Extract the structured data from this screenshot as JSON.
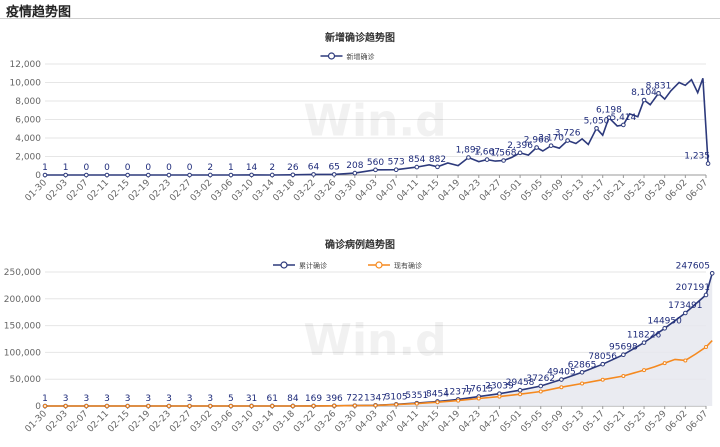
{
  "page_title": "疫情趋势图",
  "watermark": "Win.d",
  "colors": {
    "navy": "#2d3a7c",
    "orange": "#f5891f",
    "grid": "#e6e6e6",
    "area": "#e6e7ef"
  },
  "chart_data": [
    {
      "type": "line",
      "title": "新增确诊趋势图",
      "legend_placement": "top-center",
      "ylim": [
        0,
        12000
      ],
      "yticks": [
        "0",
        "2,000",
        "4,000",
        "6,000",
        "8,000",
        "10,000",
        "12,000"
      ],
      "categories": [
        "01-30",
        "02-03",
        "02-07",
        "02-11",
        "02-15",
        "02-19",
        "02-23",
        "02-27",
        "03-02",
        "03-06",
        "03-10",
        "03-14",
        "03-18",
        "03-22",
        "03-26",
        "03-30",
        "04-03",
        "04-07",
        "04-11",
        "04-15",
        "04-19",
        "04-23",
        "04-27",
        "05-01",
        "05-05",
        "05-09",
        "05-13",
        "05-17",
        "05-21",
        "05-25",
        "05-29",
        "06-02",
        "06-07"
      ],
      "series": [
        {
          "name": "新增确诊",
          "x": [
            0,
            1,
            2,
            3,
            4,
            5,
            6,
            7,
            8,
            9,
            10,
            11,
            12,
            13,
            14,
            15,
            16,
            17,
            18,
            18.6,
            19,
            19.5,
            20,
            20.5,
            21,
            21.4,
            21.8,
            22.2,
            22.6,
            23,
            23.4,
            23.8,
            24.1,
            24.5,
            24.9,
            25.3,
            25.7,
            26,
            26.3,
            26.7,
            27,
            27.3,
            27.7,
            28,
            28.3,
            28.7,
            29,
            29.3,
            29.7,
            30,
            30.3,
            30.7,
            31,
            31.3,
            31.6,
            31.85,
            32.1
          ],
          "y": [
            1,
            1,
            0,
            0,
            0,
            0,
            0,
            0,
            2,
            1,
            14,
            2,
            26,
            64,
            65,
            208,
            560,
            573,
            854,
            1100,
            882,
            1300,
            1020,
            1892,
            1450,
            1667,
            1500,
            1568,
            1900,
            2396,
            2150,
            2968,
            2600,
            3170,
            2900,
            3726,
            3400,
            3900,
            3300,
            5050,
            4300,
            6198,
            5300,
            5414,
            6600,
            6300,
            8104,
            7600,
            8831,
            8200,
            9100,
            10000,
            9700,
            10300,
            8900,
            10450,
            1235
          ]
        }
      ],
      "labels": [
        {
          "x": 0,
          "y": 1,
          "text": "1"
        },
        {
          "x": 1,
          "y": 1,
          "text": "1"
        },
        {
          "x": 2,
          "y": 0,
          "text": "0"
        },
        {
          "x": 3,
          "y": 0,
          "text": "0"
        },
        {
          "x": 4,
          "y": 0,
          "text": "0"
        },
        {
          "x": 5,
          "y": 0,
          "text": "0"
        },
        {
          "x": 6,
          "y": 0,
          "text": "0"
        },
        {
          "x": 7,
          "y": 0,
          "text": "0"
        },
        {
          "x": 8,
          "y": 2,
          "text": "2"
        },
        {
          "x": 9,
          "y": 1,
          "text": "1"
        },
        {
          "x": 10,
          "y": 14,
          "text": "14"
        },
        {
          "x": 11,
          "y": 2,
          "text": "2"
        },
        {
          "x": 12,
          "y": 26,
          "text": "26"
        },
        {
          "x": 13,
          "y": 64,
          "text": "64"
        },
        {
          "x": 14,
          "y": 65,
          "text": "65"
        },
        {
          "x": 15,
          "y": 208,
          "text": "208"
        },
        {
          "x": 16,
          "y": 560,
          "text": "560"
        },
        {
          "x": 17,
          "y": 573,
          "text": "573"
        },
        {
          "x": 18,
          "y": 854,
          "text": "854"
        },
        {
          "x": 19,
          "y": 882,
          "text": "882"
        },
        {
          "x": 20.5,
          "y": 1892,
          "text": "1,892"
        },
        {
          "x": 21.4,
          "y": 1667,
          "text": "1,667"
        },
        {
          "x": 22.2,
          "y": 1568,
          "text": "1,568"
        },
        {
          "x": 23,
          "y": 2396,
          "text": "2,396"
        },
        {
          "x": 23.8,
          "y": 2968,
          "text": "2,968"
        },
        {
          "x": 24.5,
          "y": 3170,
          "text": "3,170"
        },
        {
          "x": 25.3,
          "y": 3726,
          "text": "3,726"
        },
        {
          "x": 26.7,
          "y": 5050,
          "text": "5,050"
        },
        {
          "x": 27.3,
          "y": 6198,
          "text": "6,198"
        },
        {
          "x": 28,
          "y": 5414,
          "text": "5,414"
        },
        {
          "x": 29,
          "y": 8104,
          "text": "8,104"
        },
        {
          "x": 29.7,
          "y": 8831,
          "text": "8,831"
        },
        {
          "x": 32.1,
          "y": 1235,
          "text": "1,235"
        }
      ]
    },
    {
      "type": "area",
      "title": "确诊病例趋势图",
      "legend_placement": "top-center",
      "ylim": [
        0,
        250000
      ],
      "yticks": [
        "0",
        "50,000",
        "100,000",
        "150,000",
        "200,000",
        "250,000"
      ],
      "categories": [
        "01-30",
        "02-03",
        "02-07",
        "02-11",
        "02-15",
        "02-19",
        "02-23",
        "02-27",
        "03-02",
        "03-06",
        "03-10",
        "03-14",
        "03-18",
        "03-22",
        "03-26",
        "03-30",
        "04-03",
        "04-07",
        "04-11",
        "04-15",
        "04-19",
        "04-23",
        "04-27",
        "05-01",
        "05-05",
        "05-09",
        "05-13",
        "05-17",
        "05-21",
        "05-25",
        "05-29",
        "06-02",
        "06-07"
      ],
      "series": [
        {
          "name": "累计确诊",
          "x": [
            0,
            1,
            2,
            3,
            4,
            5,
            6,
            7,
            8,
            9,
            10,
            11,
            12,
            13,
            14,
            15,
            16,
            17,
            18,
            19,
            20,
            21,
            22,
            23,
            24,
            25,
            26,
            27,
            28,
            29,
            30,
            31,
            32,
            32.3
          ],
          "y": [
            1,
            3,
            3,
            3,
            3,
            3,
            3,
            3,
            3,
            5,
            31,
            61,
            84,
            169,
            396,
            722,
            1347,
            3105,
            5351,
            8454,
            12377,
            17615,
            23039,
            29458,
            37262,
            49405,
            62865,
            78056,
            95698,
            118226,
            144950,
            173491,
            207191,
            247605
          ]
        },
        {
          "name": "现有确诊",
          "x": [
            0,
            1,
            2,
            3,
            4,
            5,
            6,
            7,
            8,
            9,
            10,
            11,
            12,
            13,
            14,
            15,
            16,
            17,
            18,
            19,
            20,
            21,
            22,
            23,
            24,
            25,
            26,
            27,
            28,
            29,
            29.5,
            30,
            30.5,
            31,
            31.5,
            32,
            32.3
          ],
          "y": [
            1,
            3,
            3,
            3,
            3,
            3,
            3,
            3,
            3,
            5,
            30,
            58,
            80,
            160,
            370,
            660,
            1200,
            2700,
            4500,
            7000,
            10000,
            14000,
            17500,
            22000,
            27000,
            35000,
            42000,
            49000,
            56000,
            67000,
            73000,
            80000,
            87000,
            85000,
            97000,
            110000,
            122000
          ]
        }
      ],
      "labels": [
        {
          "x": 0,
          "y": 1,
          "text": "1"
        },
        {
          "x": 1,
          "y": 3,
          "text": "3"
        },
        {
          "x": 2,
          "y": 3,
          "text": "3"
        },
        {
          "x": 3,
          "y": 3,
          "text": "3"
        },
        {
          "x": 4,
          "y": 3,
          "text": "3"
        },
        {
          "x": 5,
          "y": 3,
          "text": "3"
        },
        {
          "x": 6,
          "y": 3,
          "text": "3"
        },
        {
          "x": 7,
          "y": 3,
          "text": "3"
        },
        {
          "x": 8,
          "y": 3,
          "text": "3"
        },
        {
          "x": 9,
          "y": 5,
          "text": "5"
        },
        {
          "x": 10,
          "y": 31,
          "text": "31"
        },
        {
          "x": 11,
          "y": 61,
          "text": "61"
        },
        {
          "x": 12,
          "y": 84,
          "text": "84"
        },
        {
          "x": 13,
          "y": 169,
          "text": "169"
        },
        {
          "x": 14,
          "y": 396,
          "text": "396"
        },
        {
          "x": 15,
          "y": 722,
          "text": "722"
        },
        {
          "x": 16,
          "y": 1347,
          "text": "1347"
        },
        {
          "x": 17,
          "y": 3105,
          "text": "3105"
        },
        {
          "x": 18,
          "y": 5351,
          "text": "5351"
        },
        {
          "x": 19,
          "y": 8454,
          "text": "8454"
        },
        {
          "x": 20,
          "y": 12377,
          "text": "12377"
        },
        {
          "x": 21,
          "y": 17615,
          "text": "17615"
        },
        {
          "x": 22,
          "y": 23039,
          "text": "23039"
        },
        {
          "x": 23,
          "y": 29458,
          "text": "29458"
        },
        {
          "x": 24,
          "y": 37262,
          "text": "37262"
        },
        {
          "x": 25,
          "y": 49405,
          "text": "49405"
        },
        {
          "x": 26,
          "y": 62865,
          "text": "62865"
        },
        {
          "x": 27,
          "y": 78056,
          "text": "78056"
        },
        {
          "x": 28,
          "y": 95698,
          "text": "95698"
        },
        {
          "x": 29,
          "y": 118226,
          "text": "118226"
        },
        {
          "x": 30,
          "y": 144950,
          "text": "144950"
        },
        {
          "x": 31,
          "y": 173491,
          "text": "173491"
        },
        {
          "x": 32,
          "y": 207191,
          "text": "207191"
        },
        {
          "x": 32.3,
          "y": 247605,
          "text": "247605"
        }
      ]
    }
  ]
}
